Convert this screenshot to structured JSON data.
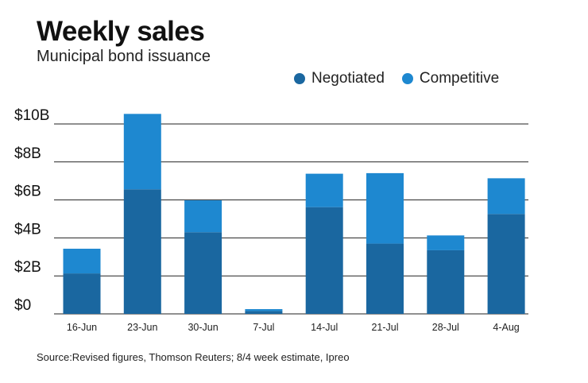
{
  "chart_data": {
    "type": "bar",
    "stacked": true,
    "title": "Weekly sales",
    "subtitle": "Municipal bond issuance",
    "categories": [
      "16-Jun",
      "23-Jun",
      "30-Jun",
      "7-Jul",
      "14-Jul",
      "21-Jul",
      "28-Jul",
      "4-Aug"
    ],
    "series": [
      {
        "name": "Negotiated",
        "color": "#1a67a0",
        "values": [
          2.13,
          6.56,
          4.3,
          0.15,
          5.62,
          3.7,
          3.35,
          5.26
        ]
      },
      {
        "name": "Competitive",
        "color": "#1e88d0",
        "values": [
          1.3,
          3.97,
          1.68,
          0.1,
          1.76,
          3.71,
          0.78,
          1.88
        ]
      }
    ],
    "yticks": [
      0,
      2,
      4,
      6,
      8,
      10
    ],
    "ytick_labels": [
      "$0",
      "$2B",
      "$4B",
      "$6B",
      "$8B",
      "$10B"
    ],
    "ylim": [
      0,
      10
    ],
    "xlabel": "",
    "ylabel": "",
    "grid": true,
    "legend_position": "top-right",
    "source": "Source:Revised figures, Thomson Reuters; 8/4 week estimate, Ipreo"
  }
}
